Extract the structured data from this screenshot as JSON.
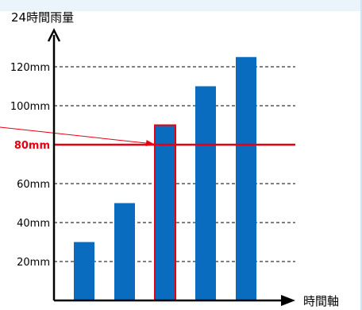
{
  "chart_data": {
    "type": "bar",
    "title": "",
    "ylabel": "24時間雨量",
    "xlabel": "時間軸",
    "y_ticks": [
      {
        "value": 20,
        "label": "20mm"
      },
      {
        "value": 40,
        "label": "40mm"
      },
      {
        "value": 60,
        "label": "60mm"
      },
      {
        "value": 80,
        "label": "80mm"
      },
      {
        "value": 100,
        "label": "100mm"
      },
      {
        "value": 120,
        "label": "120mm"
      }
    ],
    "ylim": [
      0,
      140
    ],
    "grid": "horizontal-dashed",
    "values": [
      30,
      50,
      90,
      110,
      125
    ],
    "highlight_index": 2,
    "threshold": {
      "value": 80,
      "label": "80mm"
    },
    "colors": {
      "bar": "#0a6cbf",
      "highlight": "#e60012",
      "axis": "#000000",
      "grid": "#000000"
    }
  }
}
